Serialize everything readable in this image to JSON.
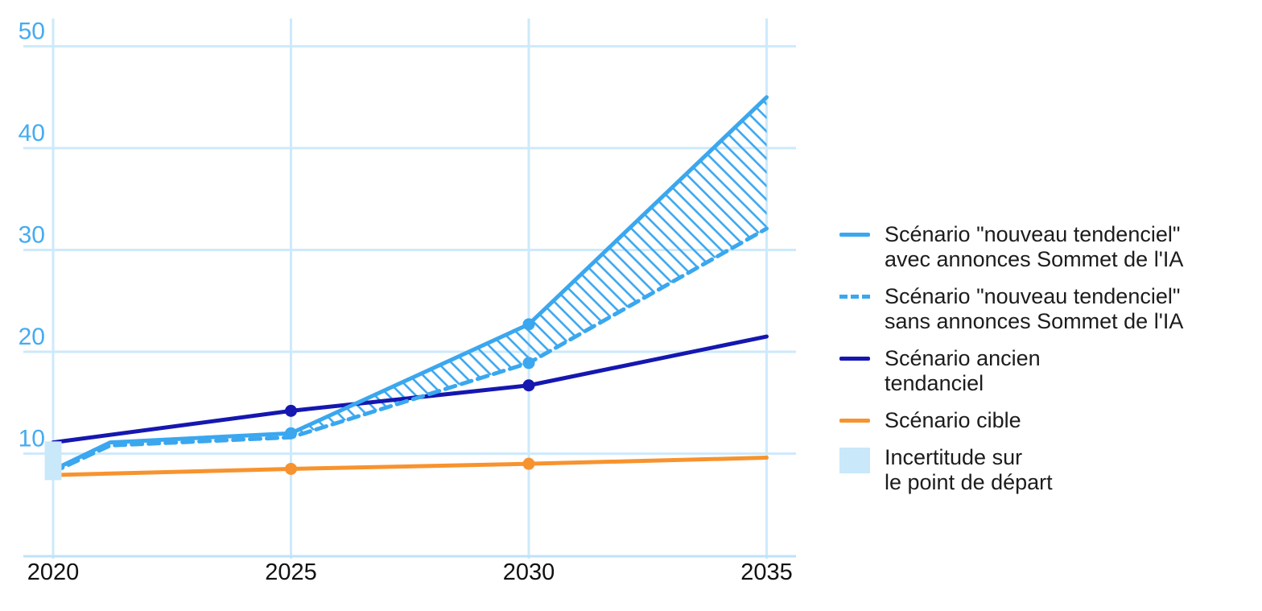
{
  "page": {
    "background": "#ffffff"
  },
  "colors": {
    "light_blue": "#3aa7ef",
    "dark_blue": "#1517b0",
    "orange": "#f7932e",
    "grid": "#cdeafb",
    "axis": "#bfe2f8",
    "uncertainty_fill": "#c9e8fa",
    "y_tick_label": "#45abf1",
    "x_tick_label": "#111111",
    "legend_text": "#1c1c1c"
  },
  "chart_data": {
    "type": "line",
    "title": "",
    "xlabel": "",
    "ylabel": "",
    "xlim": [
      2019.4,
      2035.6
    ],
    "ylim": [
      0,
      50
    ],
    "x_ticks": [
      2020,
      2025,
      2030,
      2035
    ],
    "y_ticks": [
      10,
      20,
      30,
      40,
      50
    ],
    "grid": true,
    "legend_position": "right",
    "series": [
      {
        "id": "avec-annonces",
        "name": "Scénario \"nouveau tendenciel\" avec annonces Sommet de l'IA",
        "style": "solid",
        "color_key": "light_blue",
        "x": [
          2020,
          2021.2,
          2025,
          2030,
          2035
        ],
        "y": [
          8.4,
          11.1,
          12,
          22.7,
          45
        ],
        "marker_x": [
          2025,
          2030
        ]
      },
      {
        "id": "sans-annonces",
        "name": "Scénario \"nouveau tendenciel\" sans annonces Sommet de l'IA",
        "style": "dashed",
        "color_key": "light_blue",
        "x": [
          2020,
          2021.2,
          2025,
          2030,
          2035
        ],
        "y": [
          8.2,
          10.8,
          11.6,
          18.9,
          32.1
        ],
        "marker_x": [
          2030
        ]
      },
      {
        "id": "ancien-tendanciel",
        "name": "Scénario ancien tendanciel",
        "style": "solid",
        "color_key": "dark_blue",
        "x": [
          2020,
          2025,
          2030,
          2035
        ],
        "y": [
          11.1,
          14.2,
          16.7,
          21.5
        ],
        "marker_x": [
          2025,
          2030
        ]
      },
      {
        "id": "cible",
        "name": "Scénario cible",
        "style": "solid",
        "color_key": "orange",
        "x": [
          2020,
          2025,
          2030,
          2035
        ],
        "y": [
          7.9,
          8.5,
          9,
          9.6
        ],
        "marker_x": [
          2025,
          2030
        ]
      }
    ],
    "hatch_band": {
      "upper_series": 0,
      "lower_series": 1,
      "from_x": 2025,
      "to_x": 2035
    },
    "uncertainty_box": {
      "x": 2020,
      "y_min": 7.4,
      "y_max": 11.2
    }
  },
  "legend": {
    "items": [
      {
        "id": "avec-annonces",
        "swatch": "line-solid",
        "color_key": "light_blue",
        "lines": [
          "Scénario \"nouveau tendenciel\"",
          "avec annonces Sommet de l'IA"
        ]
      },
      {
        "id": "sans-annonces",
        "swatch": "line-dashed",
        "color_key": "light_blue",
        "lines": [
          "Scénario \"nouveau tendenciel\"",
          "sans annonces Sommet de l'IA"
        ]
      },
      {
        "id": "ancien-tendanciel",
        "swatch": "line-solid",
        "color_key": "dark_blue",
        "lines": [
          "Scénario ancien",
          "tendanciel"
        ]
      },
      {
        "id": "cible",
        "swatch": "line-solid",
        "color_key": "orange",
        "lines": [
          "Scénario cible"
        ]
      },
      {
        "id": "incertitude",
        "swatch": "rect",
        "color_key": "uncertainty_fill",
        "lines": [
          "Incertitude sur",
          "le point de départ"
        ]
      }
    ]
  }
}
